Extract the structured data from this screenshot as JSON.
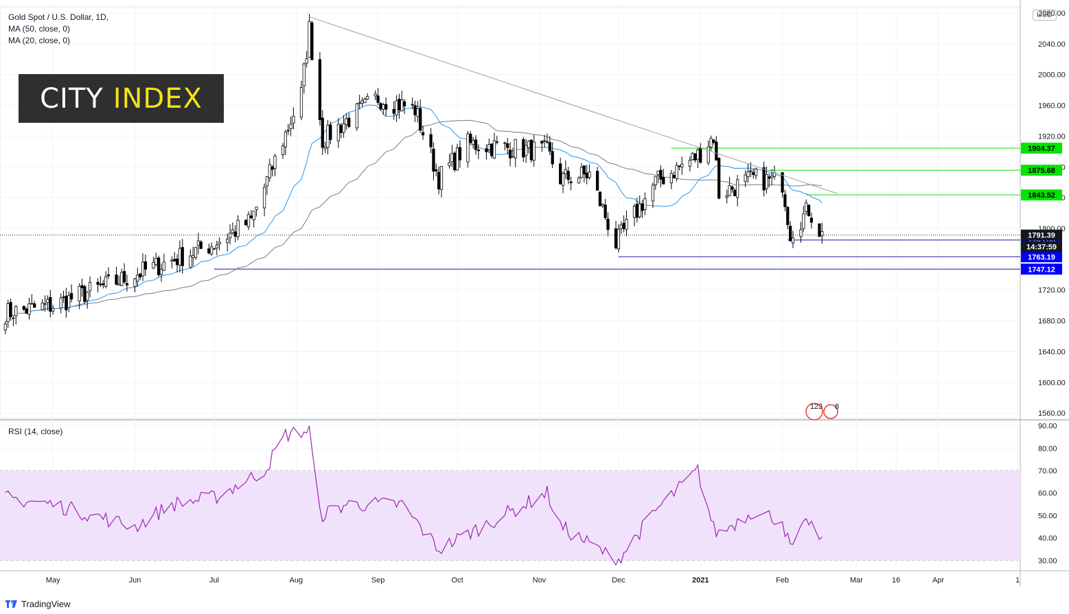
{
  "header": {
    "title": "Gold Spot / U.S. Dollar, 1D,",
    "ma50": "MA (50, close, 0)",
    "ma20": "MA (20, close, 0)",
    "currency": "USD"
  },
  "logo": {
    "word1": "CITY",
    "word2": "INDEX"
  },
  "rsi_panel": {
    "label": "RSI (14, close)"
  },
  "footer": {
    "brand": "TradingView"
  },
  "event_badge": {
    "text": "123",
    "extra": "8"
  },
  "colors": {
    "up_candle": "#ffffff",
    "down_candle": "#000000",
    "ma20": "#2196f3",
    "ma50": "#787b86",
    "trendline": "#9e9e9e",
    "resistance": "#00e600",
    "support": "#1a1aa6",
    "rsi": "#9c27b0",
    "rsi_band": "#f1e2fb"
  },
  "chart_data": [
    {
      "type": "candlestick",
      "title": "Gold Spot / U.S. Dollar, 1D,",
      "x_ticks": [
        "May",
        "Jun",
        "Jul",
        "Aug",
        "Sep",
        "Oct",
        "Nov",
        "Dec",
        "2021",
        "Feb",
        "Mar",
        "16",
        "Apr",
        "1"
      ],
      "y_ticks": [
        "2080.00",
        "2040.00",
        "2000.00",
        "1960.00",
        "1920.00",
        "1880.00",
        "1840.00",
        "1800.00",
        "1720.00",
        "1680.00",
        "1640.00",
        "1600.00",
        "1560.00"
      ],
      "ylim": [
        1553,
        2088
      ],
      "series": [
        {
          "name": "MA (50, close, 0)",
          "color": "#787b86"
        },
        {
          "name": "MA (20, close, 0)",
          "color": "#2196f3"
        }
      ],
      "key_series": {
        "x": [
          "2020-04-13",
          "2020-05-01",
          "2020-06-01",
          "2020-07-01",
          "2020-07-15",
          "2020-08-03",
          "2020-08-06",
          "2020-08-11",
          "2020-08-20",
          "2020-09-01",
          "2020-09-15",
          "2020-09-24",
          "2020-10-05",
          "2020-10-20",
          "2020-11-04",
          "2020-11-09",
          "2020-11-20",
          "2020-11-30",
          "2020-12-15",
          "2020-12-31",
          "2021-01-06",
          "2021-01-08",
          "2021-01-21",
          "2021-02-01",
          "2021-02-04",
          "2021-02-11",
          "2021-02-16"
        ],
        "close": [
          1690,
          1700,
          1740,
          1780,
          1810,
          1975,
          2060,
          1915,
          1940,
          1970,
          1955,
          1865,
          1910,
          1905,
          1900,
          1865,
          1870,
          1780,
          1860,
          1895,
          1920,
          1845,
          1865,
          1860,
          1795,
          1825,
          1791
        ]
      },
      "annotations": {
        "trendline": {
          "start": [
            "2020-08-06",
            2075
          ],
          "end": [
            "2021-02-22",
            1845
          ]
        },
        "resistance_levels": [
          1904.37,
          1875.68,
          1843.52
        ],
        "support_levels": [
          1785.0,
          1763.19,
          1747.12
        ],
        "last_price": 1791.39,
        "countdown": "14:37:59"
      }
    },
    {
      "type": "line",
      "title": "RSI (14, close)",
      "y_ticks": [
        "90.00",
        "80.00",
        "70.00",
        "60.00",
        "50.00",
        "40.00",
        "30.00"
      ],
      "ylim": [
        30,
        90
      ],
      "band": [
        30,
        70
      ],
      "series": [
        {
          "name": "RSI (14, close)",
          "x": [
            "2020-04-13",
            "2020-05-01",
            "2020-06-01",
            "2020-06-15",
            "2020-07-01",
            "2020-07-20",
            "2020-07-28",
            "2020-08-06",
            "2020-08-10",
            "2020-08-20",
            "2020-09-10",
            "2020-09-24",
            "2020-10-15",
            "2020-11-04",
            "2020-11-09",
            "2020-11-25",
            "2020-11-30",
            "2020-12-15",
            "2020-12-31",
            "2021-01-06",
            "2021-01-08",
            "2021-01-21",
            "2021-02-01",
            "2021-02-04",
            "2021-02-11",
            "2021-02-16"
          ],
          "values": [
            58,
            55,
            45,
            55,
            58,
            70,
            86,
            88,
            50,
            55,
            55,
            35,
            48,
            60,
            45,
            34,
            29,
            52,
            70,
            44,
            42,
            52,
            48,
            35,
            48,
            37
          ]
        }
      ]
    }
  ]
}
